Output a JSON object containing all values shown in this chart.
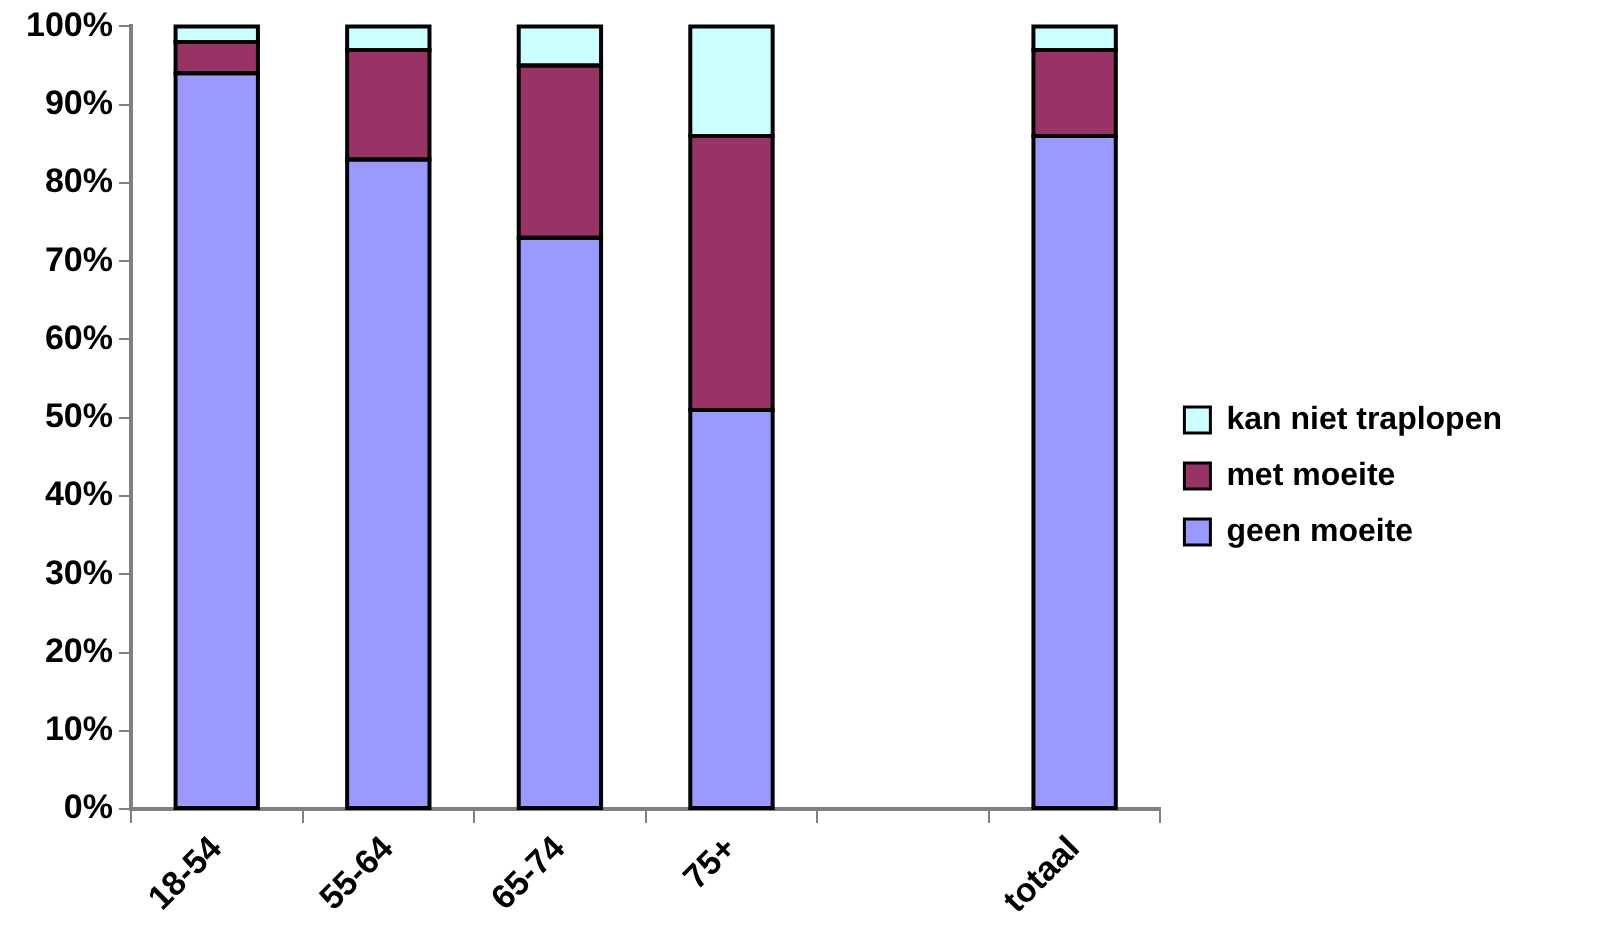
{
  "chart_data": {
    "type": "bar",
    "stacked": true,
    "categories": [
      "18-54",
      "55-64",
      "65-74",
      "75+",
      null,
      "totaal"
    ],
    "series": [
      {
        "name": "geen moeite",
        "color": "#9999ff",
        "values": [
          94,
          83,
          73,
          51,
          null,
          86
        ]
      },
      {
        "name": "met moeite",
        "color": "#993366",
        "values": [
          4,
          14,
          22,
          35,
          null,
          11
        ]
      },
      {
        "name": "kan niet traplopen",
        "color": "#ccffff",
        "values": [
          2,
          3,
          5,
          14,
          null,
          3
        ]
      }
    ],
    "ylim": [
      0,
      100
    ],
    "yticks": [
      {
        "value": 0,
        "label": "0%"
      },
      {
        "value": 10,
        "label": "10%"
      },
      {
        "value": 20,
        "label": "20%"
      },
      {
        "value": 30,
        "label": "30%"
      },
      {
        "value": 40,
        "label": "40%"
      },
      {
        "value": 50,
        "label": "50%"
      },
      {
        "value": 60,
        "label": "60%"
      },
      {
        "value": 70,
        "label": "70%"
      },
      {
        "value": 80,
        "label": "80%"
      },
      {
        "value": 90,
        "label": "90%"
      },
      {
        "value": 100,
        "label": "100%"
      }
    ],
    "grid": false,
    "legend": "right"
  }
}
